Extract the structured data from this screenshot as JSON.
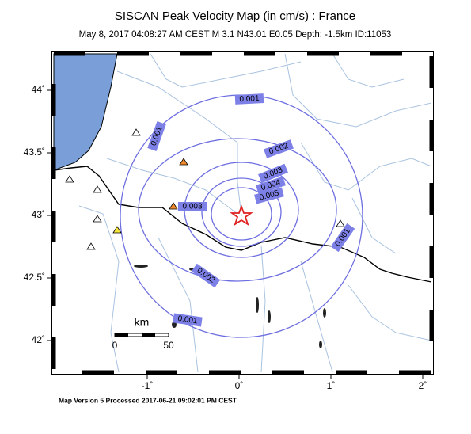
{
  "header": {
    "title": "SISCAN Peak Velocity Map (in cm/s) : France",
    "subtitle": "May  8, 2017 04:08:27 AM CEST    M 3.1    N43.01 E0.05    Depth: -1.5km    ID:11053"
  },
  "map": {
    "lat_ticks": [
      {
        "value": 44,
        "label": "44˚"
      },
      {
        "value": 43.5,
        "label": "43.5˚"
      },
      {
        "value": 43,
        "label": "43˚"
      },
      {
        "value": 42.5,
        "label": "42.5˚"
      },
      {
        "value": 42,
        "label": "42˚"
      }
    ],
    "lon_ticks": [
      {
        "value": -1,
        "label": "-1˚"
      },
      {
        "value": 0,
        "label": "0˚"
      },
      {
        "value": 1,
        "label": "1˚"
      },
      {
        "value": 2,
        "label": "2˚"
      }
    ],
    "contour_labels": [
      "0.001",
      "0.001",
      "0.002",
      "0.003",
      "0.004",
      "0.005",
      "0.003",
      "0.002",
      "0.001",
      "0.001"
    ],
    "scale_bar": {
      "unit": "km",
      "start": "0",
      "end": "50"
    }
  },
  "footer": "Map Version 5 Processed 2017-06-21 09:02:01 PM CEST"
}
